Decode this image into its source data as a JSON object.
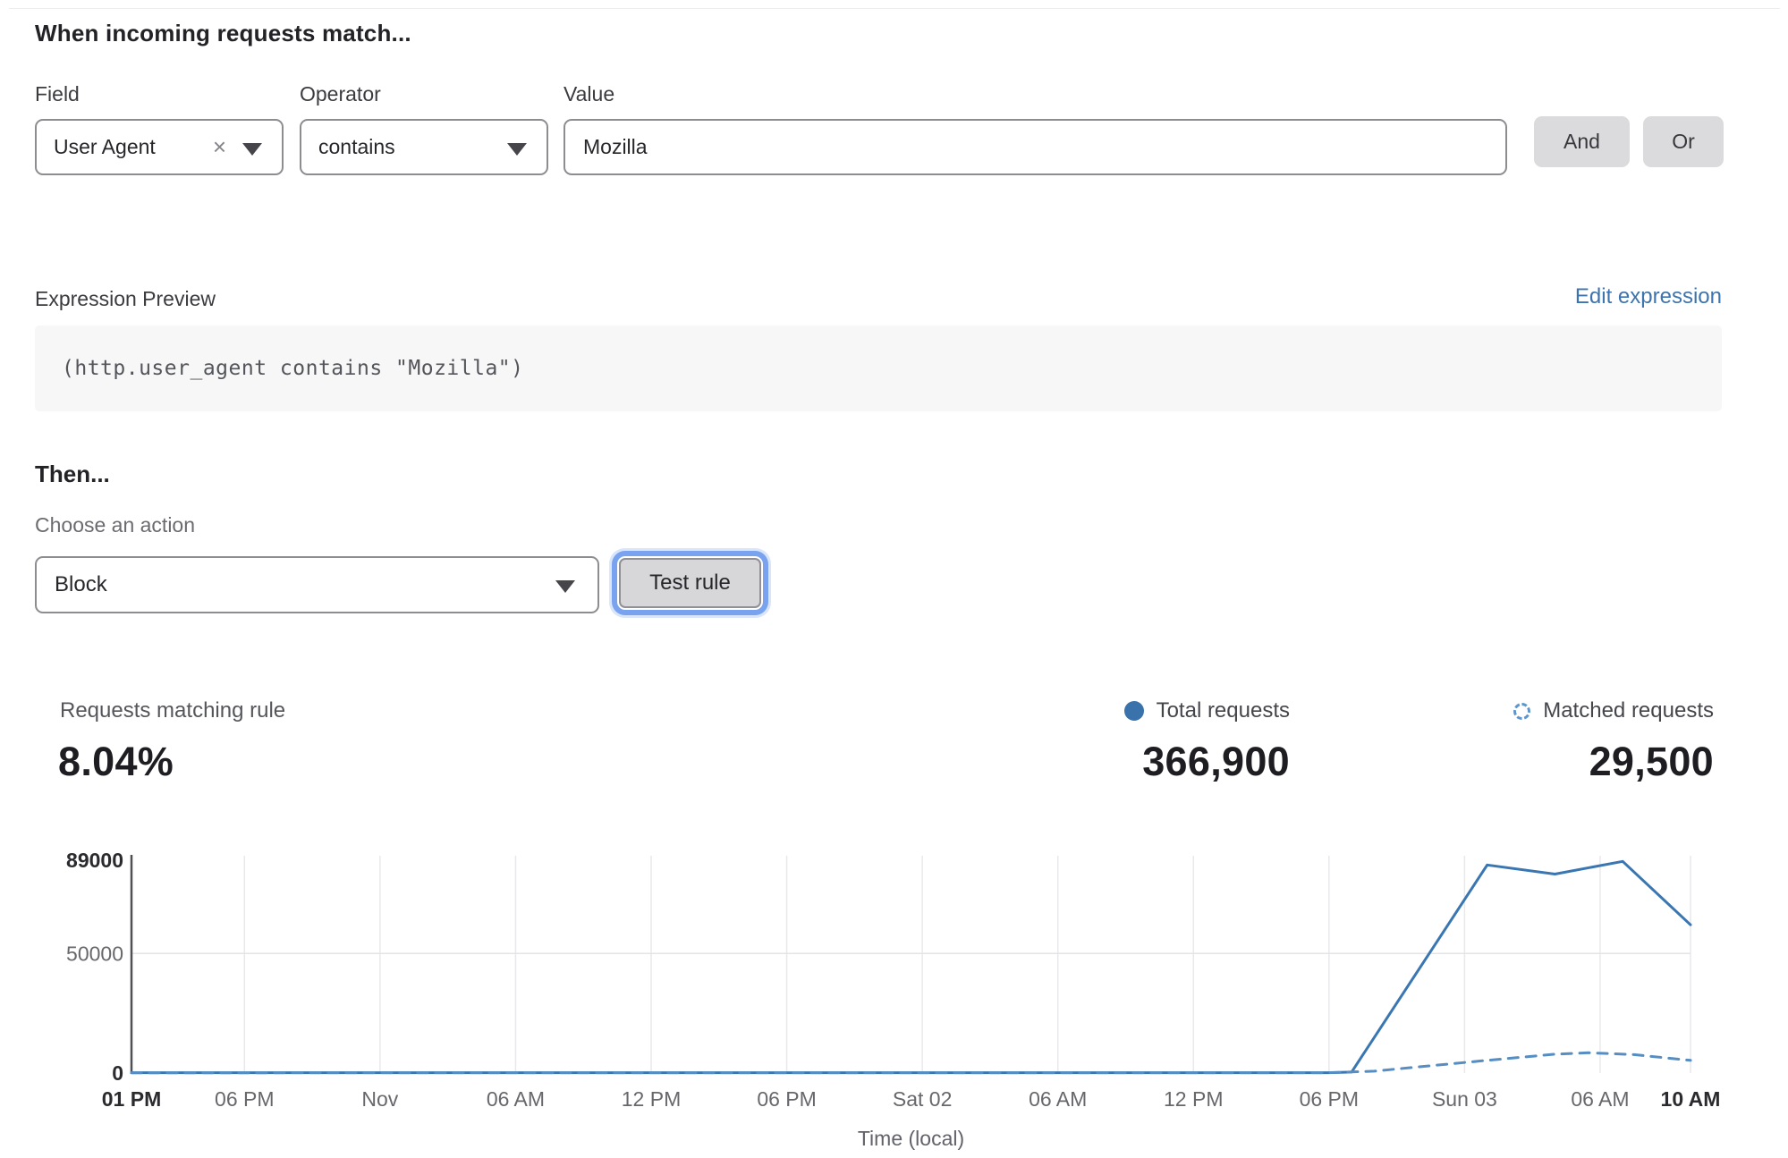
{
  "rule_builder": {
    "heading": "When incoming requests match...",
    "field": {
      "label": "Field",
      "value": "User Agent"
    },
    "operator": {
      "label": "Operator",
      "value": "contains"
    },
    "value": {
      "label": "Value",
      "value": "Mozilla"
    },
    "and_label": "And",
    "or_label": "Or"
  },
  "expression": {
    "label": "Expression Preview",
    "edit_link": "Edit expression",
    "code": "(http.user_agent contains \"Mozilla\")"
  },
  "action": {
    "heading": "Then...",
    "choose_label": "Choose an action",
    "selected": "Block",
    "test_button": "Test rule"
  },
  "stats": {
    "matching": {
      "label": "Requests matching rule",
      "value": "8.04%"
    },
    "total": {
      "label": "Total requests",
      "value": "366,900"
    },
    "matched": {
      "label": "Matched requests",
      "value": "29,500"
    }
  },
  "icons": {
    "clear": "×"
  },
  "colors": {
    "solid_line": "#3A77B2",
    "dashed_line": "#568EC4",
    "legend_dot": "#3A72AC",
    "legend_ring": "#5E96CC",
    "link_blue": "#3D74AE"
  },
  "chart_data": {
    "type": "line",
    "title": "",
    "xlabel": "Time (local)",
    "ylabel": "",
    "ylim": [
      0,
      89000
    ],
    "yticks": [
      0,
      50000,
      89000
    ],
    "ytick_bold": [
      true,
      false,
      true
    ],
    "xticks": [
      "01 PM",
      "06 PM",
      "Nov",
      "06 AM",
      "12 PM",
      "06 PM",
      "Sat 02",
      "06 AM",
      "12 PM",
      "06 PM",
      "Sun 03",
      "06 AM",
      "10 AM"
    ],
    "xtick_hours": [
      0,
      5,
      11,
      17,
      23,
      29,
      35,
      41,
      47,
      53,
      59,
      65,
      69
    ],
    "x_span_hours": 69,
    "grid": {
      "vertical": true,
      "horizontal_at": [
        50000
      ]
    },
    "legend_position": "top-right",
    "series": [
      {
        "name": "Total requests",
        "style": "solid",
        "color": "#3A77B2",
        "points": [
          [
            0,
            150
          ],
          [
            53,
            150
          ],
          [
            54,
            400
          ],
          [
            60,
            87000
          ],
          [
            63,
            83200
          ],
          [
            66,
            88500
          ],
          [
            69,
            62000
          ]
        ]
      },
      {
        "name": "Matched requests",
        "style": "dashed",
        "color": "#568EC4",
        "points": [
          [
            0,
            100
          ],
          [
            53,
            150
          ],
          [
            55,
            800
          ],
          [
            57,
            2600
          ],
          [
            60,
            5300
          ],
          [
            63,
            7900
          ],
          [
            64.5,
            8500
          ],
          [
            66.5,
            7700
          ],
          [
            69,
            5300
          ]
        ]
      }
    ]
  }
}
